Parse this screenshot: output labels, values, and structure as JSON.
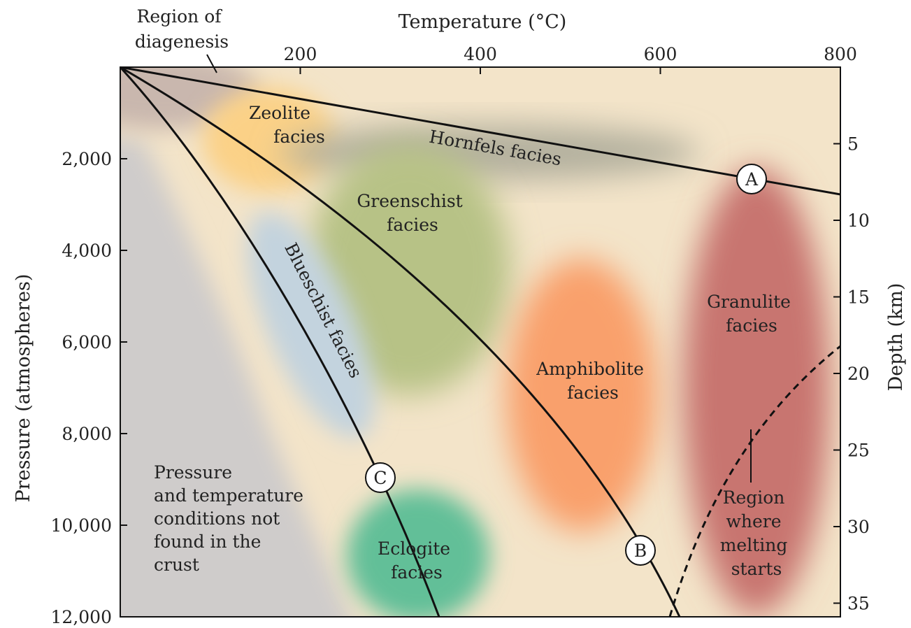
{
  "top_axis": {
    "title": "Temperature (°C)",
    "ticks": [
      "200",
      "400",
      "600",
      "800"
    ],
    "range": [
      0,
      800
    ]
  },
  "left_axis": {
    "title": "Pressure (atmospheres)",
    "ticks": [
      "2,000",
      "4,000",
      "6,000",
      "8,000",
      "10,000",
      "12,000"
    ],
    "range": [
      0,
      12000
    ]
  },
  "right_axis": {
    "title": "Depth (km)",
    "ticks": [
      "5",
      "10",
      "15",
      "20",
      "25",
      "30",
      "35"
    ]
  },
  "regions": {
    "diagenesis": [
      "Region of",
      "diagenesis"
    ],
    "zeolite": [
      "Zeolite",
      "facies"
    ],
    "hornfels": "Hornfels facies",
    "greenschist": [
      "Greenschist",
      "facies"
    ],
    "blueschist": "Blueschist facies",
    "amphibolite": [
      "Amphibolite",
      "facies"
    ],
    "granulite": [
      "Granulite",
      "facies"
    ],
    "eclogite": [
      "Eclogite",
      "facies"
    ],
    "not_found": [
      "Pressure",
      "and temperature",
      "conditions not",
      "found in the",
      "crust"
    ],
    "melting": [
      "Region",
      "where",
      "melting",
      "starts"
    ]
  },
  "path_markers": [
    "A",
    "B",
    "C"
  ],
  "colors": {
    "background": "#f3e4c9",
    "not_found": "#cfcccb",
    "diagenesis": "#c9b7ae",
    "zeolite": "#fbd187",
    "hornfels": "#b3b09e",
    "greenschist": "#b7c286",
    "blueschist": "#c3d3de",
    "amphibolite": "#f9a06c",
    "granulite": "#c87470",
    "eclogite": "#62bf98"
  }
}
